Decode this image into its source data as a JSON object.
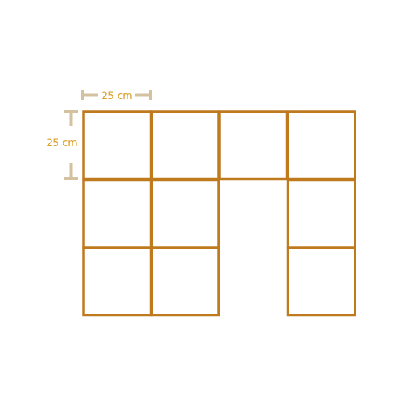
{
  "figure": {
    "description_units": "cm",
    "square_side_cm": 25,
    "grid": {
      "columns": 4,
      "rows": 3,
      "filled": [
        [
          1,
          1,
          1,
          1
        ],
        [
          1,
          1,
          0,
          1
        ],
        [
          1,
          1,
          0,
          1
        ]
      ]
    }
  },
  "dimensions": {
    "horizontal_label": "25 cm",
    "vertical_label": "25 cm"
  },
  "colors": {
    "square_stroke": "#c07a1e",
    "label_text": "#dba02e",
    "dimension_bracket": "#d4c1a0",
    "background": "#ffffff"
  }
}
